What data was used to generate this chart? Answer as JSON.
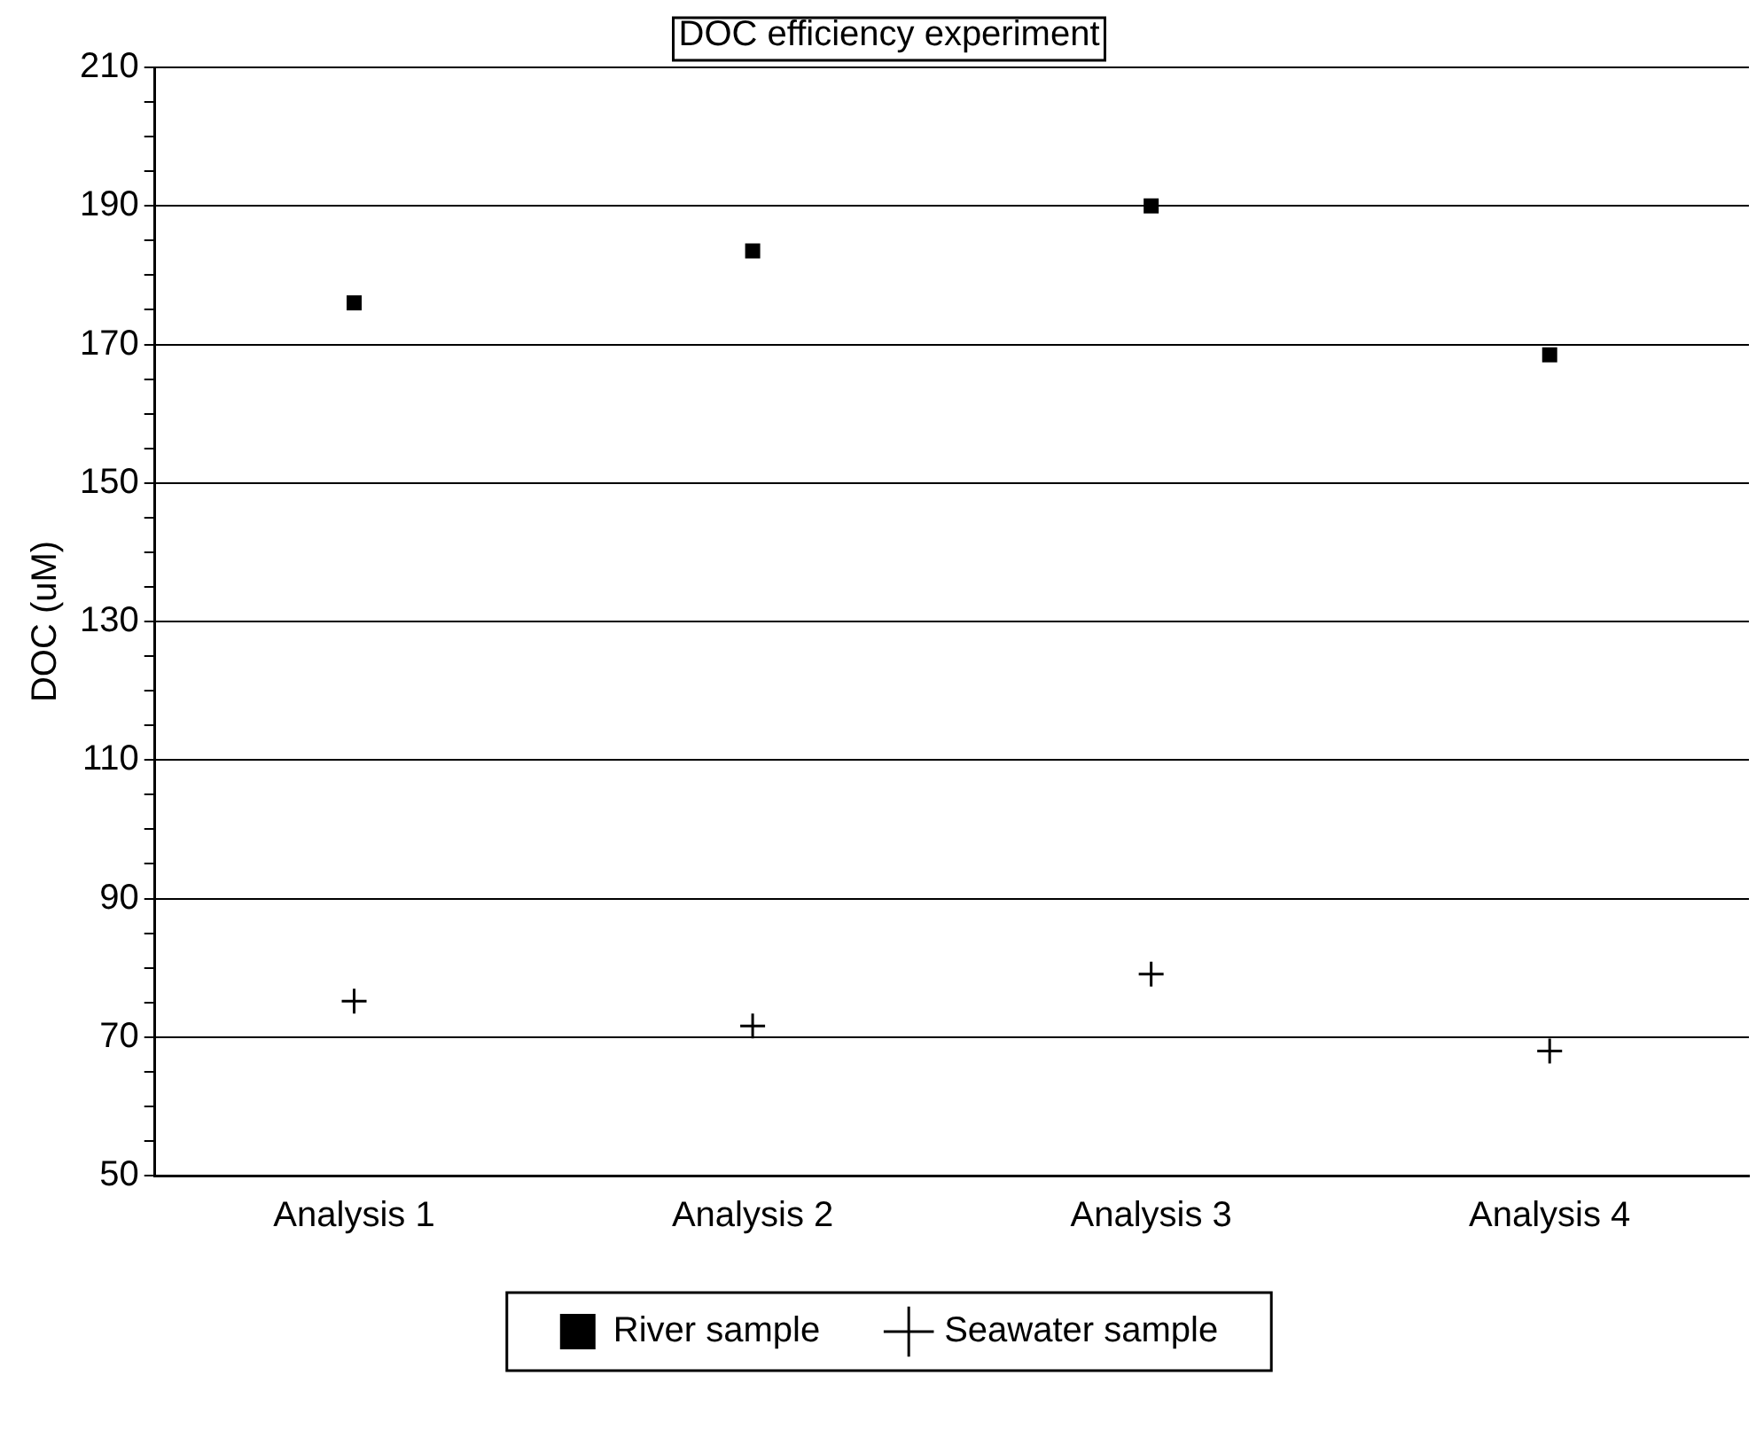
{
  "chart_data": {
    "type": "scatter",
    "title": "DOC efficiency experiment",
    "ylabel": "DOC (uM)",
    "categories": [
      "Analysis 1",
      "Analysis 2",
      "Analysis 3",
      "Analysis 4"
    ],
    "series": [
      {
        "name": "River sample",
        "color": "#000000",
        "marker": "square",
        "values": [
          176,
          183.5,
          190,
          168.5
        ]
      },
      {
        "name": "Seawater sample",
        "color": "#000000",
        "marker": "cross",
        "values": [
          75.2,
          71.6,
          79.1,
          68
        ]
      }
    ],
    "ylim": [
      50,
      210
    ],
    "yticks": [
      50,
      {
        "value": 55,
        "label": null
      },
      {
        "value": 60,
        "label": null
      },
      {
        "value": 65,
        "label": null
      },
      70,
      {
        "value": 75,
        "label": null
      },
      {
        "value": 80,
        "label": null
      },
      {
        "value": 85,
        "label": null
      },
      90,
      {
        "value": 95,
        "label": null
      },
      {
        "value": 100,
        "label": null
      },
      {
        "value": 105,
        "label": null
      },
      110,
      {
        "value": 115,
        "label": null
      },
      {
        "value": 120,
        "label": null
      },
      {
        "value": 125,
        "label": null
      },
      130,
      {
        "value": 135,
        "label": null
      },
      {
        "value": 140,
        "label": null
      },
      {
        "value": 145,
        "label": null
      },
      150,
      {
        "value": 155,
        "label": null
      },
      {
        "value": 160,
        "label": null
      },
      {
        "value": 165,
        "label": null
      },
      170,
      {
        "value": 175,
        "label": null
      },
      {
        "value": 180,
        "label": null
      },
      {
        "value": 185,
        "label": null
      },
      190,
      {
        "value": 195,
        "label": null
      },
      {
        "value": 200,
        "label": null
      },
      {
        "value": 205,
        "label": null
      },
      210
    ],
    "grid": "y",
    "legend": "bottom"
  }
}
